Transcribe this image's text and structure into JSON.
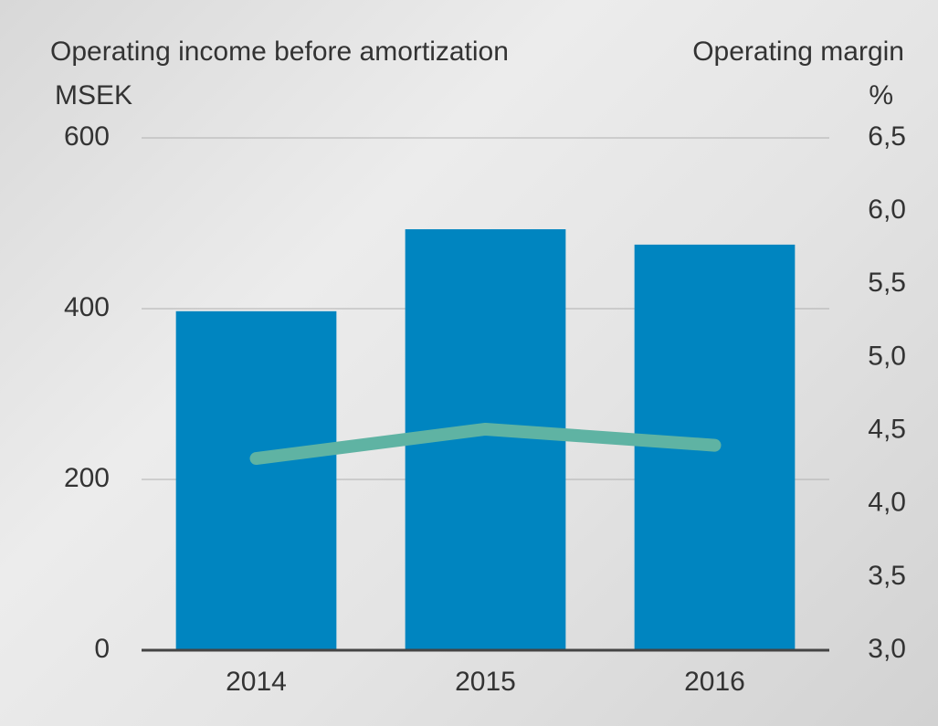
{
  "chart_data": {
    "type": "bar",
    "categories": [
      "2014",
      "2015",
      "2016"
    ],
    "series": [
      {
        "name": "Operating income before amortization",
        "type": "bar",
        "color": "#0085c0",
        "values": [
          397,
          493,
          475
        ]
      },
      {
        "name": "Operating margin",
        "type": "line",
        "axis": "y2",
        "color": "#5fb3a3",
        "values": [
          4.31,
          4.51,
          4.4
        ]
      }
    ],
    "y_unit": "MSEK",
    "y2_unit": "%",
    "ylim": [
      0,
      600
    ],
    "yticks": [
      0,
      200,
      400,
      600
    ],
    "y2lim": [
      3.0,
      6.5
    ],
    "y2ticks": [
      {
        "value": 3.0,
        "label": "3,0"
      },
      {
        "value": 3.5,
        "label": "3,5"
      },
      {
        "value": 4.0,
        "label": "4,0"
      },
      {
        "value": 4.5,
        "label": "4,5"
      },
      {
        "value": 5.0,
        "label": "5,0"
      },
      {
        "value": 5.5,
        "label": "5,5"
      },
      {
        "value": 6.0,
        "label": "6,0"
      },
      {
        "value": 6.5,
        "label": "6,5"
      }
    ],
    "grid": true
  }
}
